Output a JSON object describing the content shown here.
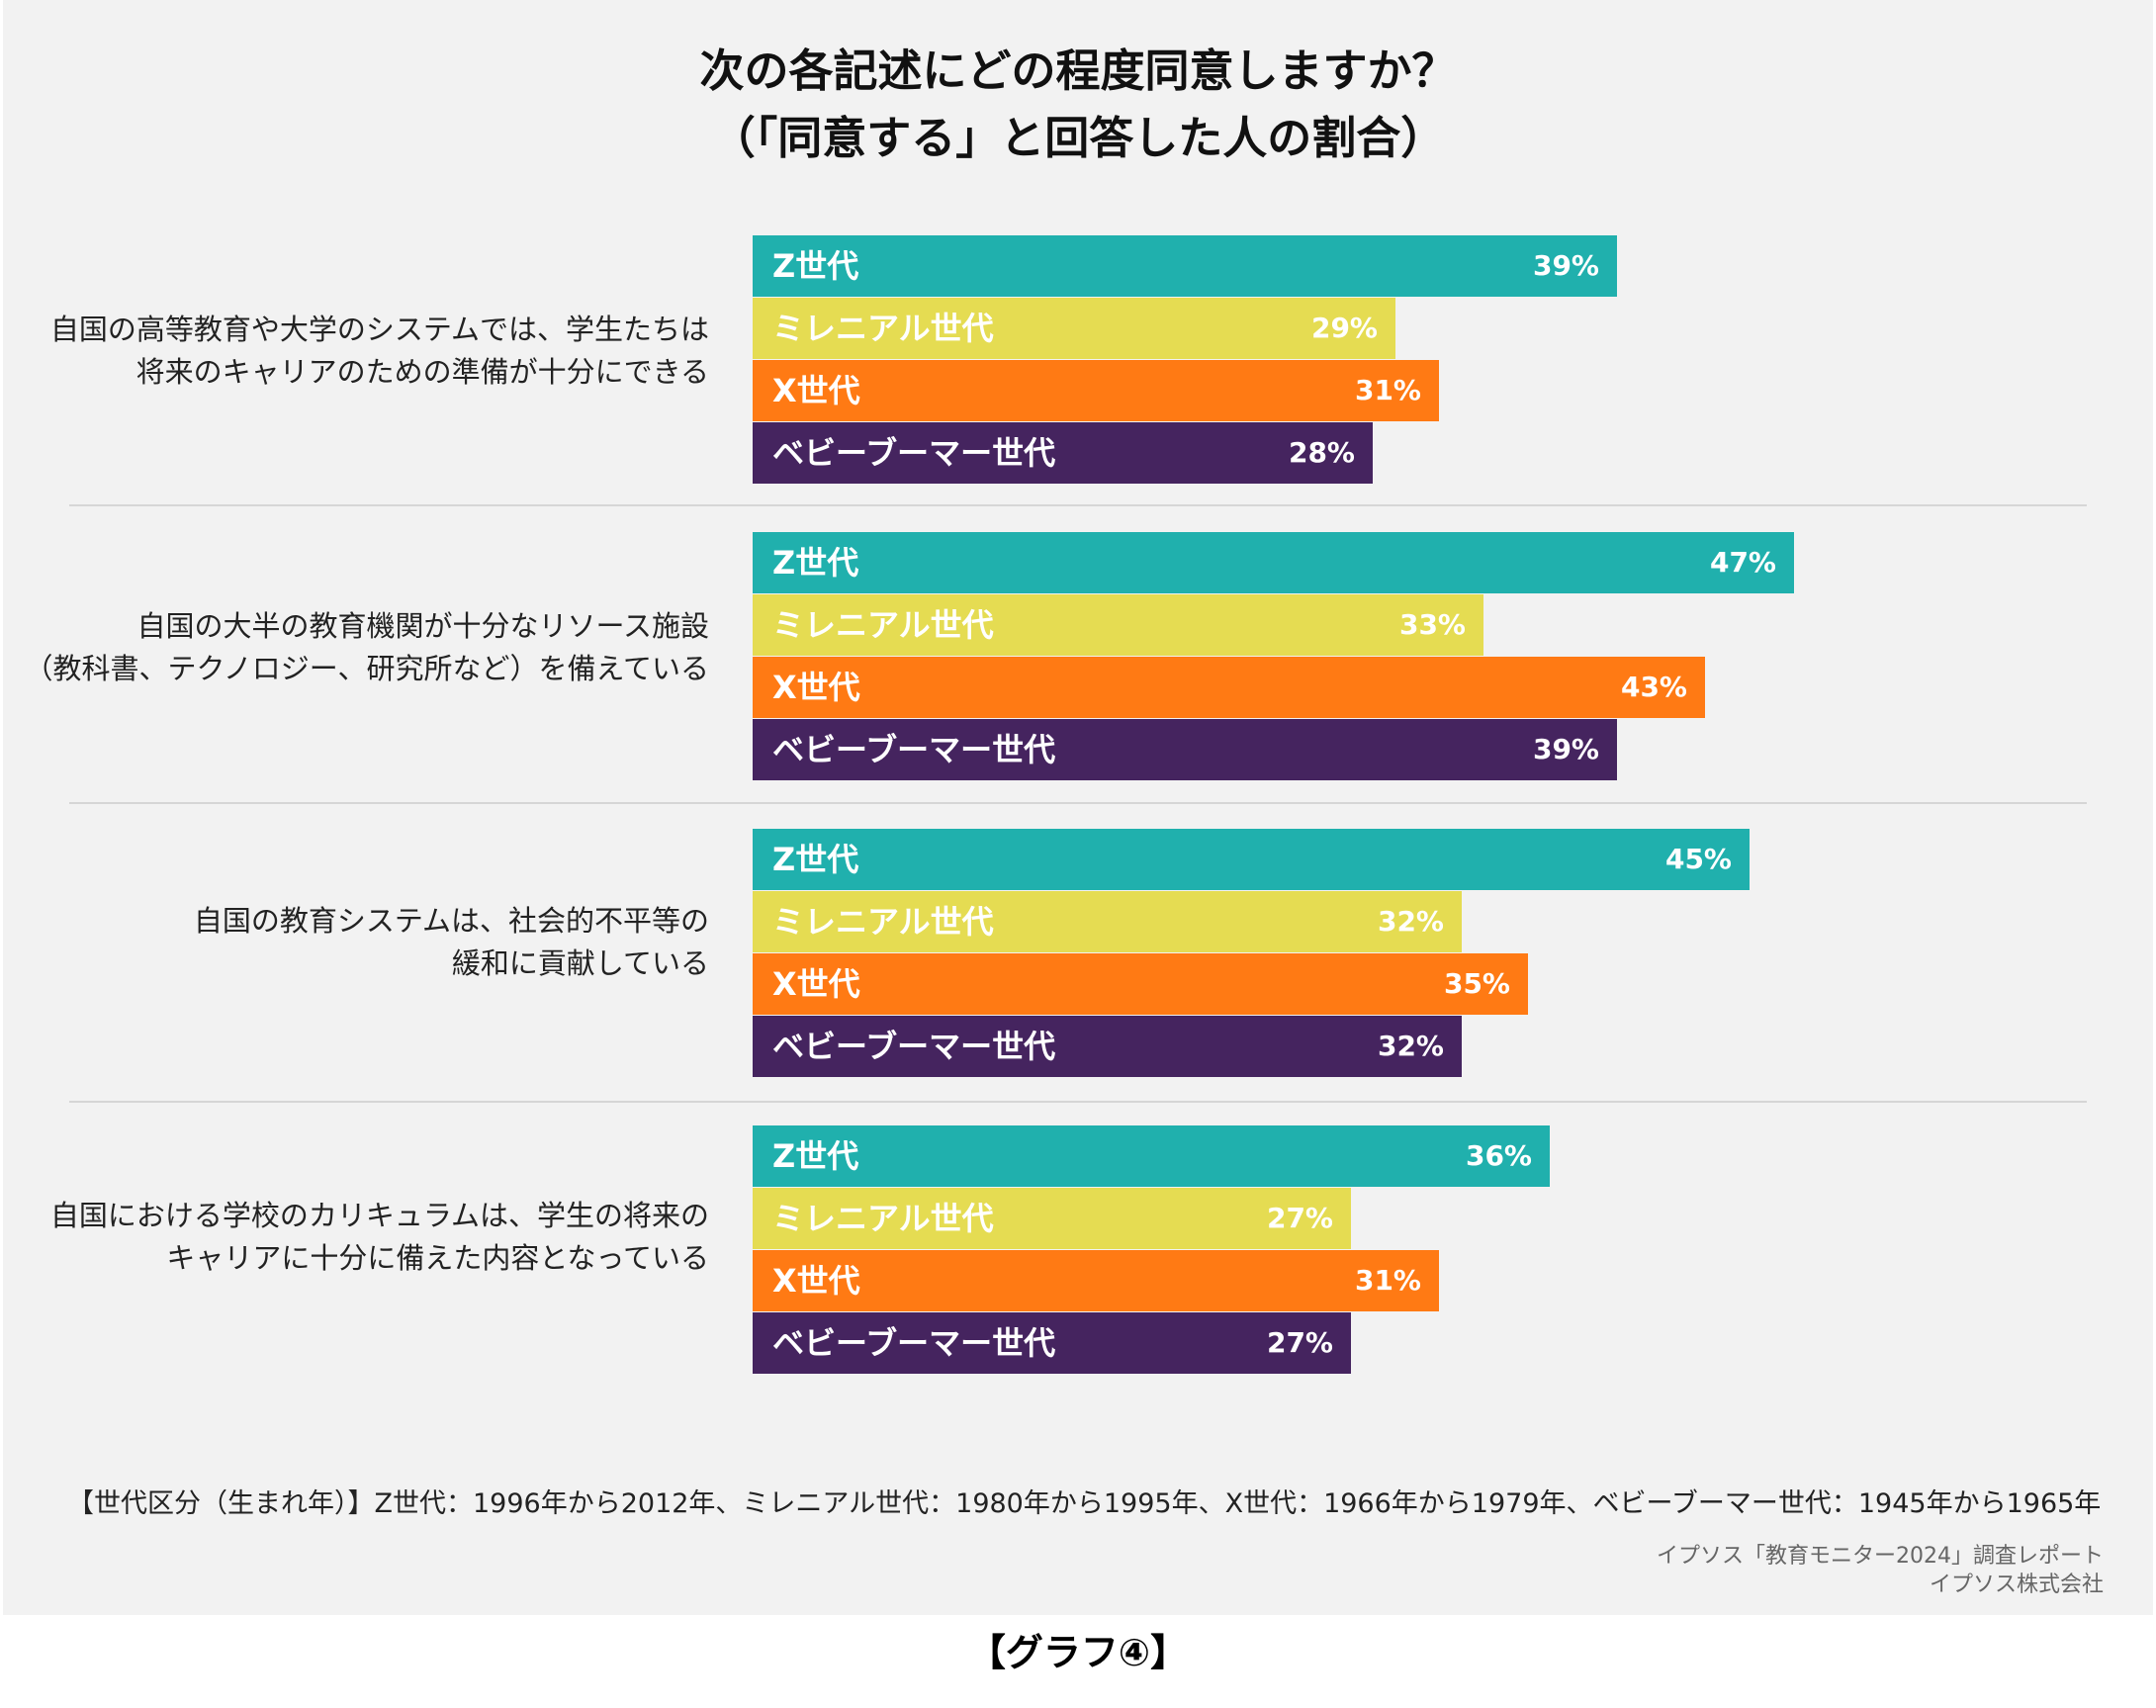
{
  "title_line1": "次の各記述にどの程度同意しますか？",
  "title_line2": "（「同意する」と回答した人の割合）",
  "footnote": "【世代区分（生まれ年）】Z世代：1996年から2012年、ミレニアル世代：1980年から1995年、X世代：1966年から1979年、ベビーブーマー世代：1945年から1965年",
  "source_line1": "イプソス「教育モニター2024」調査レポート",
  "source_line2": "イプソス株式会社",
  "caption": "【グラフ④】",
  "colors": {
    "gen_z": "#20b0ad",
    "millennial": "#e5dc52",
    "gen_x": "#ff7a14",
    "boomer": "#45245f"
  },
  "chart_data": {
    "type": "bar",
    "orientation": "horizontal",
    "unit": "%",
    "xlim": [
      0,
      100
    ],
    "series_labels": [
      "Z世代",
      "ミレニアル世代",
      "X世代",
      "ベビーブーマー世代"
    ],
    "groups": [
      {
        "label_lines": [
          "自国の高等教育や大学のシステムでは、学生たちは",
          "将来のキャリアのための準備が十分にできる"
        ],
        "values": [
          39,
          29,
          31,
          28
        ]
      },
      {
        "label_lines": [
          "自国の大半の教育機関が十分なリソース施設",
          "（教科書、テクノロジー、研究所など）を備えている"
        ],
        "values": [
          47,
          33,
          43,
          39
        ]
      },
      {
        "label_lines": [
          "自国の教育システムは、社会的不平等の",
          "緩和に貢献している"
        ],
        "values": [
          45,
          32,
          35,
          32
        ]
      },
      {
        "label_lines": [
          "自国における学校のカリキュラムは、学生の将来の",
          "キャリアに十分に備えた内容となっている"
        ],
        "values": [
          36,
          27,
          31,
          27
        ]
      }
    ]
  }
}
